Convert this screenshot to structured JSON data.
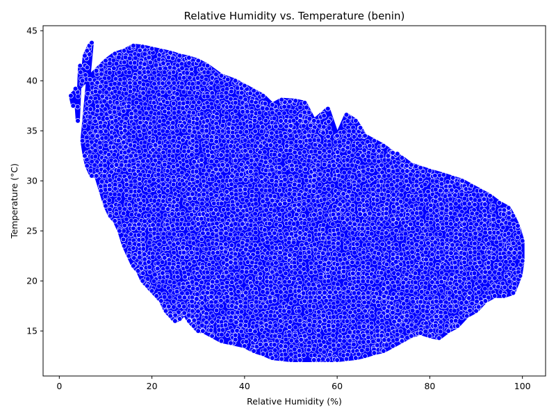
{
  "chart_data": {
    "type": "scatter",
    "title": "Relative Humidity vs. Temperature (benin)",
    "xlabel": "Relative Humidity (%)",
    "ylabel": "Temperature (°C)",
    "xlim": [
      -3.5,
      105
    ],
    "ylim": [
      10.5,
      45.5
    ],
    "xticks": [
      0,
      20,
      40,
      60,
      80,
      100
    ],
    "yticks": [
      15,
      20,
      25,
      30,
      35,
      40,
      45
    ],
    "grid": false,
    "legend": "none",
    "marker_color": "#0000ff",
    "marker_edge_color": "#ffffff",
    "series": [
      {
        "values_note_free": true,
        "points": [
          [
            2.5,
            38.5
          ],
          [
            3.0,
            37.5
          ],
          [
            3.5,
            39.2
          ],
          [
            4.0,
            36.0
          ],
          [
            4.5,
            41.5
          ],
          [
            5.0,
            40.0
          ],
          [
            5.5,
            42.5
          ],
          [
            6.0,
            43.0
          ],
          [
            6.5,
            43.5
          ],
          [
            7.0,
            43.8
          ],
          [
            5.0,
            34.0
          ],
          [
            5.5,
            32.5
          ],
          [
            6.0,
            31.5
          ],
          [
            7.0,
            30.5
          ],
          [
            8.0,
            30.5
          ],
          [
            9.0,
            29.0
          ],
          [
            10.0,
            27.5
          ],
          [
            11.0,
            26.5
          ],
          [
            12.0,
            26.0
          ],
          [
            13.0,
            25.0
          ],
          [
            14.0,
            23.5
          ],
          [
            15.0,
            22.5
          ],
          [
            16.0,
            21.5
          ],
          [
            17.0,
            21.0
          ],
          [
            18.0,
            20.0
          ],
          [
            19.0,
            19.5
          ],
          [
            20.0,
            19.0
          ],
          [
            21.0,
            18.5
          ],
          [
            22.0,
            18.0
          ],
          [
            23.0,
            17.0
          ],
          [
            24.0,
            16.5
          ],
          [
            25.0,
            16.0
          ],
          [
            26.0,
            16.2
          ],
          [
            27.0,
            16.8
          ],
          [
            28.0,
            16.0
          ],
          [
            29.0,
            15.5
          ],
          [
            30.0,
            15.0
          ],
          [
            31.0,
            15.0
          ],
          [
            33.0,
            14.5
          ],
          [
            35.0,
            14.0
          ],
          [
            37.0,
            13.8
          ],
          [
            40.0,
            13.5
          ],
          [
            42.0,
            13.0
          ],
          [
            44.0,
            12.7
          ],
          [
            46.0,
            12.3
          ],
          [
            48.0,
            12.2
          ],
          [
            50.0,
            12.1
          ],
          [
            52.0,
            12.1
          ],
          [
            55.0,
            12.1
          ],
          [
            58.0,
            12.1
          ],
          [
            60.0,
            12.1
          ],
          [
            62.0,
            12.2
          ],
          [
            64.0,
            12.3
          ],
          [
            66.0,
            12.5
          ],
          [
            68.0,
            12.8
          ],
          [
            70.0,
            13.0
          ],
          [
            72.0,
            13.5
          ],
          [
            74.0,
            14.0
          ],
          [
            76.0,
            14.5
          ],
          [
            78.0,
            14.8
          ],
          [
            80.0,
            14.5
          ],
          [
            82.0,
            14.3
          ],
          [
            84.0,
            15.0
          ],
          [
            86.0,
            15.5
          ],
          [
            88.0,
            16.5
          ],
          [
            90.0,
            17.0
          ],
          [
            92.0,
            18.0
          ],
          [
            94.0,
            18.5
          ],
          [
            96.0,
            18.5
          ],
          [
            98.0,
            18.8
          ],
          [
            99.5,
            20.5
          ],
          [
            100.0,
            22.0
          ],
          [
            100.0,
            24.0
          ],
          [
            99.0,
            25.5
          ],
          [
            98.0,
            26.5
          ],
          [
            97.0,
            27.3
          ],
          [
            95.0,
            27.8
          ],
          [
            93.0,
            28.5
          ],
          [
            91.0,
            29.0
          ],
          [
            89.0,
            29.5
          ],
          [
            87.0,
            30.0
          ],
          [
            85.0,
            30.3
          ],
          [
            83.0,
            30.6
          ],
          [
            80.0,
            31.0
          ],
          [
            78.0,
            31.3
          ],
          [
            76.0,
            31.6
          ],
          [
            74.0,
            32.3
          ],
          [
            72.0,
            32.8
          ],
          [
            70.0,
            33.5
          ],
          [
            68.0,
            34.0
          ],
          [
            66.0,
            34.5
          ],
          [
            64.0,
            36.0
          ],
          [
            62.0,
            36.6
          ],
          [
            60.0,
            34.5
          ],
          [
            58.0,
            37.2
          ],
          [
            55.0,
            36.0
          ],
          [
            53.0,
            37.8
          ],
          [
            51.0,
            38.0
          ],
          [
            48.0,
            38.1
          ],
          [
            46.0,
            37.6
          ],
          [
            44.0,
            38.5
          ],
          [
            42.0,
            39.0
          ],
          [
            40.0,
            39.5
          ],
          [
            38.0,
            40.0
          ],
          [
            35.0,
            40.5
          ],
          [
            32.0,
            41.5
          ],
          [
            30.0,
            42.0
          ],
          [
            28.0,
            42.3
          ],
          [
            26.0,
            42.5
          ],
          [
            24.0,
            42.8
          ],
          [
            22.0,
            43.0
          ],
          [
            20.0,
            43.2
          ],
          [
            18.0,
            43.4
          ],
          [
            16.0,
            43.5
          ],
          [
            14.0,
            43.0
          ],
          [
            12.0,
            42.7
          ],
          [
            10.0,
            42.0
          ],
          [
            9.0,
            41.5
          ],
          [
            8.0,
            41.0
          ],
          [
            97.5,
            23.2
          ],
          [
            65.0,
            35.3
          ],
          [
            67.0,
            33.5
          ],
          [
            69.0,
            33.0
          ],
          [
            71.0,
            32.5
          ],
          [
            73.0,
            32.7
          ],
          [
            75.0,
            31.5
          ],
          [
            57.0,
            34.8
          ],
          [
            52.0,
            36.0
          ],
          [
            50.0,
            35.5
          ]
        ]
      }
    ]
  }
}
